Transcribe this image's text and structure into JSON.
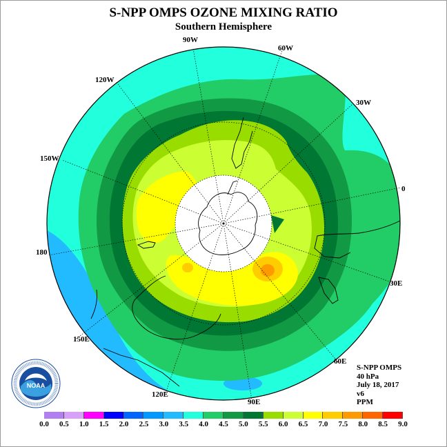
{
  "header": {
    "title": "S-NPP OMPS OZONE MIXING RATIO",
    "subtitle": "Southern Hemisphere"
  },
  "longitude_labels": {
    "w90": "90W",
    "w60": "60W",
    "w30": "30W",
    "e0": "0",
    "e30": "30E",
    "e60": "60E",
    "e90": "90E",
    "e120": "120E",
    "e150": "150E",
    "l180": "180",
    "w150": "150W",
    "w120": "120W"
  },
  "info": {
    "instrument": "S-NPP OMPS",
    "level": "40 hPa",
    "date": "July 18, 2017",
    "version": "v6",
    "units": "PPM"
  },
  "logo": {
    "text": "NOAA"
  },
  "colorbar": {
    "ticks": [
      "0.0",
      "0.5",
      "1.0",
      "1.5",
      "2.0",
      "2.5",
      "3.0",
      "3.5",
      "4.0",
      "4.5",
      "5.0",
      "5.5",
      "6.0",
      "6.5",
      "7.0",
      "7.5",
      "8.0",
      "8.5",
      "9.0"
    ],
    "colors": [
      "#b080f0",
      "#d8a0f8",
      "#ff00ff",
      "#0000ff",
      "#0066ff",
      "#0099ff",
      "#22bbff",
      "#22ffdd",
      "#22cc66",
      "#119944",
      "#007733",
      "#99dd00",
      "#ccff33",
      "#ffff00",
      "#ffcc00",
      "#ff9900",
      "#ff6600",
      "#ff0000",
      "#885533"
    ]
  },
  "colors": {
    "band_3_0": "#22bbff",
    "band_3_5": "#22ffdd",
    "band_4_0": "#22cc66",
    "band_4_5": "#119944",
    "band_5_0": "#007733",
    "band_5_5": "#99dd00",
    "band_6_0": "#ccff33",
    "band_6_5": "#ffff00",
    "band_7_0": "#ffcc00",
    "band_7_5": "#ff9900",
    "missing": "#ffffff"
  }
}
